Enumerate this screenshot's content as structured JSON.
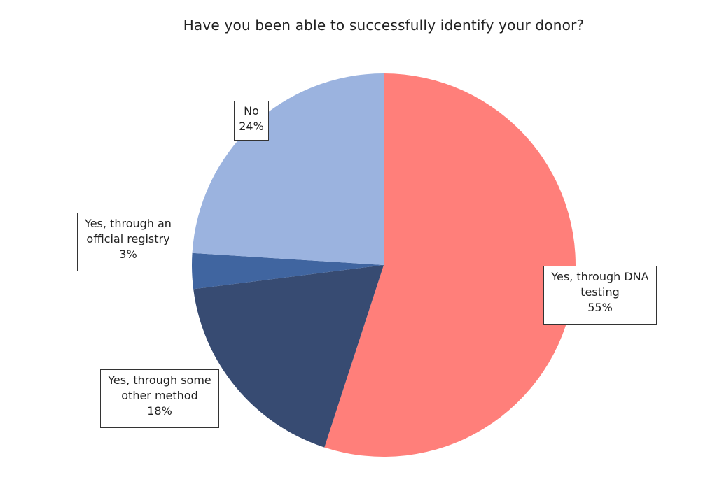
{
  "chart_data": {
    "type": "pie",
    "title": "Have you been able to successfully identify your donor?",
    "slices": [
      {
        "label": "Yes, through DNA testing",
        "value": 55,
        "pct_label": "55%",
        "color": "#FF7F7A"
      },
      {
        "label": "Yes, through some other method",
        "value": 18,
        "pct_label": "18%",
        "color": "#374B72"
      },
      {
        "label": "Yes, through an official registry",
        "value": 3,
        "pct_label": "3%",
        "color": "#4065A0"
      },
      {
        "label": "No",
        "value": 24,
        "pct_label": "24%",
        "color": "#9BB3DF"
      }
    ],
    "legend": "none"
  }
}
